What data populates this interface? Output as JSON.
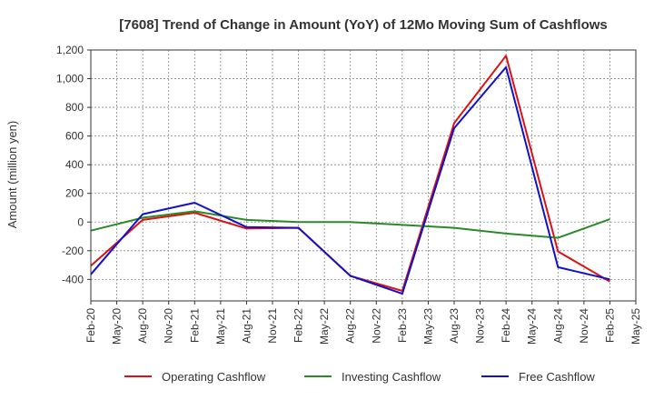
{
  "chart_data": {
    "type": "line",
    "title": "[7608]  Trend of Change in Amount (YoY) of 12Mo Moving Sum of Cashflows",
    "xlabel": "",
    "ylabel": "Amount (million yen)",
    "ylim": [
      -550,
      1200
    ],
    "yticks": [
      -400,
      -200,
      0,
      200,
      400,
      600,
      800,
      1000,
      1200
    ],
    "ytick_labels": [
      "-400",
      "-200",
      "0",
      "200",
      "400",
      "600",
      "800",
      "1,000",
      "1,200"
    ],
    "categories": [
      "Feb-20",
      "May-20",
      "Aug-20",
      "Nov-20",
      "Feb-21",
      "May-21",
      "Aug-21",
      "Nov-21",
      "Feb-22",
      "May-22",
      "Aug-22",
      "Nov-22",
      "Feb-23",
      "May-23",
      "Aug-23",
      "Nov-23",
      "Feb-24",
      "May-24",
      "Aug-24",
      "Nov-24",
      "Feb-25",
      "May-25"
    ],
    "grid": true,
    "legend_position": "bottom",
    "series": [
      {
        "name": "Operating Cashflow",
        "color": "#dd1111",
        "values": [
          -305,
          null,
          15,
          null,
          65,
          null,
          -45,
          null,
          -40,
          null,
          -375,
          null,
          -480,
          null,
          690,
          null,
          1160,
          null,
          -205,
          null,
          -415,
          null
        ]
      },
      {
        "name": "Investing Cashflow",
        "color": "#2a8a2a",
        "values": [
          -60,
          null,
          30,
          null,
          75,
          null,
          15,
          null,
          0,
          null,
          0,
          null,
          -20,
          null,
          -40,
          null,
          -80,
          null,
          -110,
          null,
          20,
          null
        ]
      },
      {
        "name": "Free Cashflow",
        "color": "#1111cc",
        "values": [
          -365,
          null,
          55,
          null,
          135,
          null,
          -35,
          null,
          -40,
          null,
          -375,
          null,
          -500,
          null,
          655,
          null,
          1080,
          null,
          -315,
          null,
          -400,
          null
        ]
      }
    ]
  }
}
